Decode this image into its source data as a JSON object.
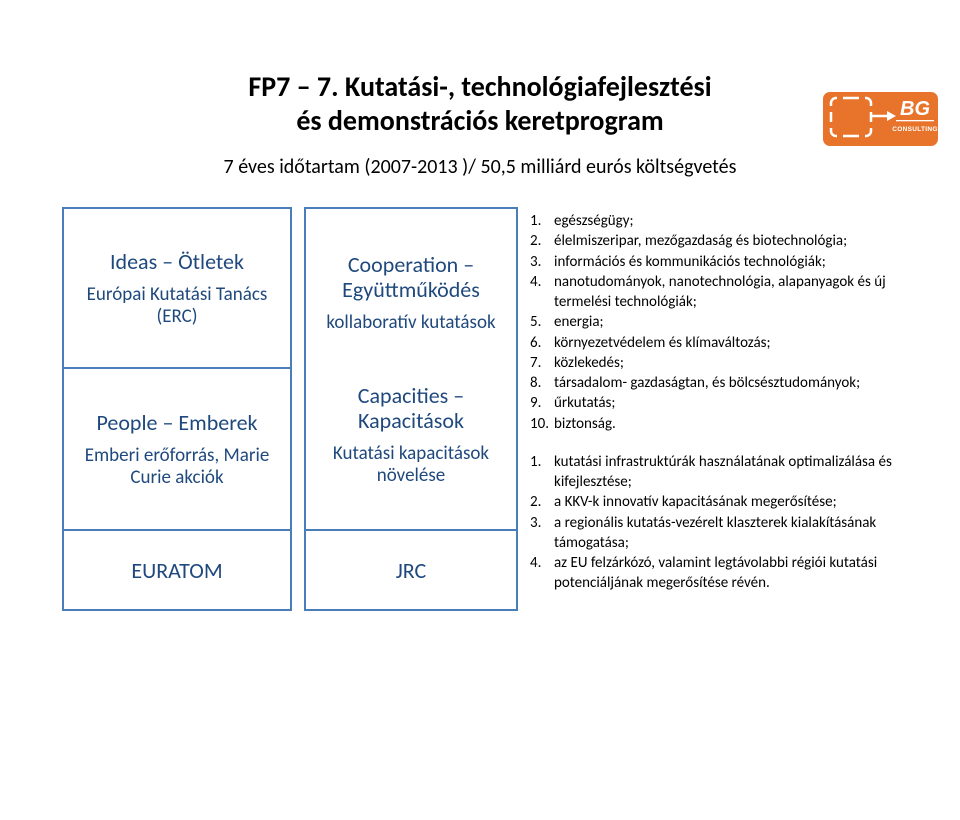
{
  "logo": {
    "bg_color": "#e8742c",
    "box_border": "#ffffff",
    "text_top": "BG",
    "text_bottom": "CONSULTING",
    "text_color": "#ffffff"
  },
  "title_line1": "FP7 – 7. Kutatási-, technológiafejlesztési",
  "title_line2": "és demonstrációs keretprogram",
  "subtitle": "7 éves időtartam (2007-2013 )/ 50,5 milliárd eurós költségvetés",
  "cells": {
    "ideas": {
      "title": "Ideas – Ötletek",
      "sub": "Európai Kutatási Tanács (ERC)"
    },
    "people": {
      "title": "People – Emberek",
      "sub": "Emberi erőforrás, Marie Curie akciók"
    },
    "euratom": {
      "title": "EURATOM"
    },
    "coop": {
      "title1": "Cooperation – Együttműködés",
      "sub1": "kollaboratív kutatások",
      "title2": "Capacities – Kapacitások",
      "sub2": "Kutatási kapacitások növelése"
    },
    "jrc": {
      "title": "JRC"
    }
  },
  "list_a": [
    "egészségügy;",
    "élelmiszeripar, mezőgazdaság és biotechnológia;",
    "információs és kommunikációs technológiák;",
    "nanotudományok, nanotechnológia, alapanyagok és új termelési technológiák;",
    "energia;",
    "környezetvédelem és klímaváltozás;",
    "közlekedés;",
    "társadalom- gazdaságtan, és bölcsésztudományok;",
    "űrkutatás;",
    "biztonság."
  ],
  "list_b": [
    "kutatási infrastruktúrák használatának optimalizálása és kifejlesztése;",
    "a KKV-k innovatív kapacitásának megerősítése;",
    "a regionális kutatás-vezérelt klaszterek kialakításának támogatása;",
    "az EU felzárkózó, valamint legtávolabbi régiói kutatási potenciáljának megerősítése révén."
  ]
}
